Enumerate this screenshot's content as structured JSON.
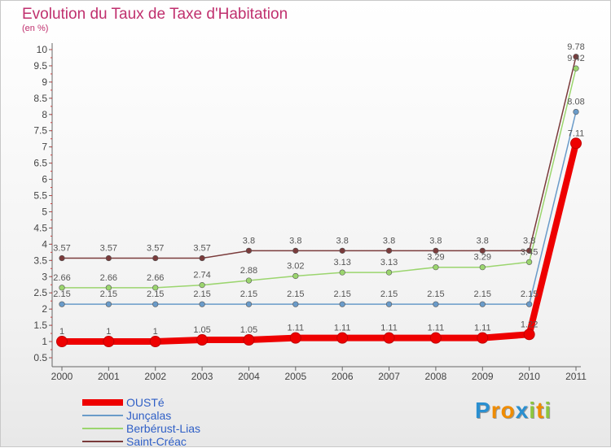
{
  "chart_data": {
    "type": "line",
    "title": "Evolution du Taux de Taxe d'Habitation",
    "ylabel": "(en %)",
    "xlabel": "",
    "categories": [
      "2000",
      "2001",
      "2002",
      "2003",
      "2004",
      "2005",
      "2006",
      "2007",
      "2008",
      "2009",
      "2010",
      "2011"
    ],
    "ylim": [
      0.5,
      10
    ],
    "yticks": [
      "0.5",
      "1",
      "1.5",
      "2",
      "2.5",
      "3",
      "3.5",
      "4",
      "4.5",
      "5",
      "5.5",
      "6",
      "6.5",
      "7",
      "7.5",
      "8",
      "8.5",
      "9",
      "9.5",
      "10"
    ],
    "grid": false,
    "legend_position": "bottom-left",
    "series": [
      {
        "name": "OUSTé",
        "color": "#ee0000",
        "values": [
          1,
          1,
          1,
          1.05,
          1.05,
          1.11,
          1.11,
          1.11,
          1.11,
          1.11,
          1.22,
          7.11
        ],
        "labels": [
          "1",
          "1",
          "1",
          "1.05",
          "1.05",
          "1.11",
          "1.11",
          "1.11",
          "1.11",
          "1.11",
          "1.22",
          "7.11"
        ]
      },
      {
        "name": "Junçalas",
        "color": "#6a9bc9",
        "values": [
          2.15,
          2.15,
          2.15,
          2.15,
          2.15,
          2.15,
          2.15,
          2.15,
          2.15,
          2.15,
          2.15,
          8.08
        ],
        "labels": [
          "2.15",
          "2.15",
          "2.15",
          "2.15",
          "2.15",
          "2.15",
          "2.15",
          "2.15",
          "2.15",
          "2.15",
          "2.15",
          "8.08"
        ]
      },
      {
        "name": "Berbérust-Lias",
        "color": "#9bd56e",
        "values": [
          2.66,
          2.66,
          2.66,
          2.74,
          2.88,
          3.02,
          3.13,
          3.13,
          3.29,
          3.29,
          3.45,
          9.42
        ],
        "labels": [
          "2.66",
          "2.66",
          "2.66",
          "2.74",
          "2.88",
          "3.02",
          "3.13",
          "3.13",
          "3.29",
          "3.29",
          "3.45",
          "9.42"
        ]
      },
      {
        "name": "Saint-Créac",
        "color": "#7a3b3b",
        "values": [
          3.57,
          3.57,
          3.57,
          3.57,
          3.8,
          3.8,
          3.8,
          3.8,
          3.8,
          3.8,
          3.8,
          9.78
        ],
        "labels": [
          "3.57",
          "3.57",
          "3.57",
          "3.57",
          "3.8",
          "3.8",
          "3.8",
          "3.8",
          "3.8",
          "3.8",
          "3.8",
          "9.78"
        ]
      }
    ]
  },
  "legend": {
    "items": [
      {
        "label": "OUSTé",
        "color": "#ee0000"
      },
      {
        "label": "Junçalas",
        "color": "#6a9bc9"
      },
      {
        "label": "Berbérust-Lias",
        "color": "#9bd56e"
      },
      {
        "label": "Saint-Créac",
        "color": "#7a3b3b"
      }
    ]
  },
  "logo": {
    "letters": [
      "P",
      "r",
      "o",
      "x",
      "i",
      "t",
      "i"
    ],
    "colors": [
      "#2a8fd0",
      "#f08c00",
      "#f08c00",
      "#2a8fd0",
      "#8cc63f",
      "#f08c00",
      "#8cc63f"
    ]
  }
}
